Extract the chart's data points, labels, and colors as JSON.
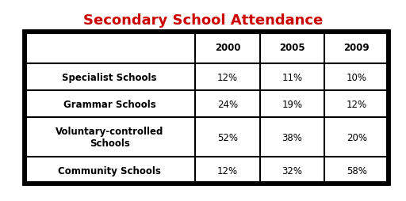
{
  "title": "Secondary School Attendance",
  "title_color": "#cc0000",
  "title_fontsize": 13,
  "col_headers": [
    "",
    "2000",
    "2005",
    "2009"
  ],
  "rows": [
    [
      "Specialist Schools",
      "12%",
      "11%",
      "10%"
    ],
    [
      "Grammar Schools",
      "24%",
      "19%",
      "12%"
    ],
    [
      "Voluntary-controlled\nSchools",
      "52%",
      "38%",
      "20%"
    ],
    [
      "Community Schools",
      "12%",
      "32%",
      "58%"
    ]
  ],
  "background_color": "#ffffff",
  "cell_text_fontsize": 8.5,
  "header_fontsize": 8.5,
  "data_text_color": "#000000"
}
